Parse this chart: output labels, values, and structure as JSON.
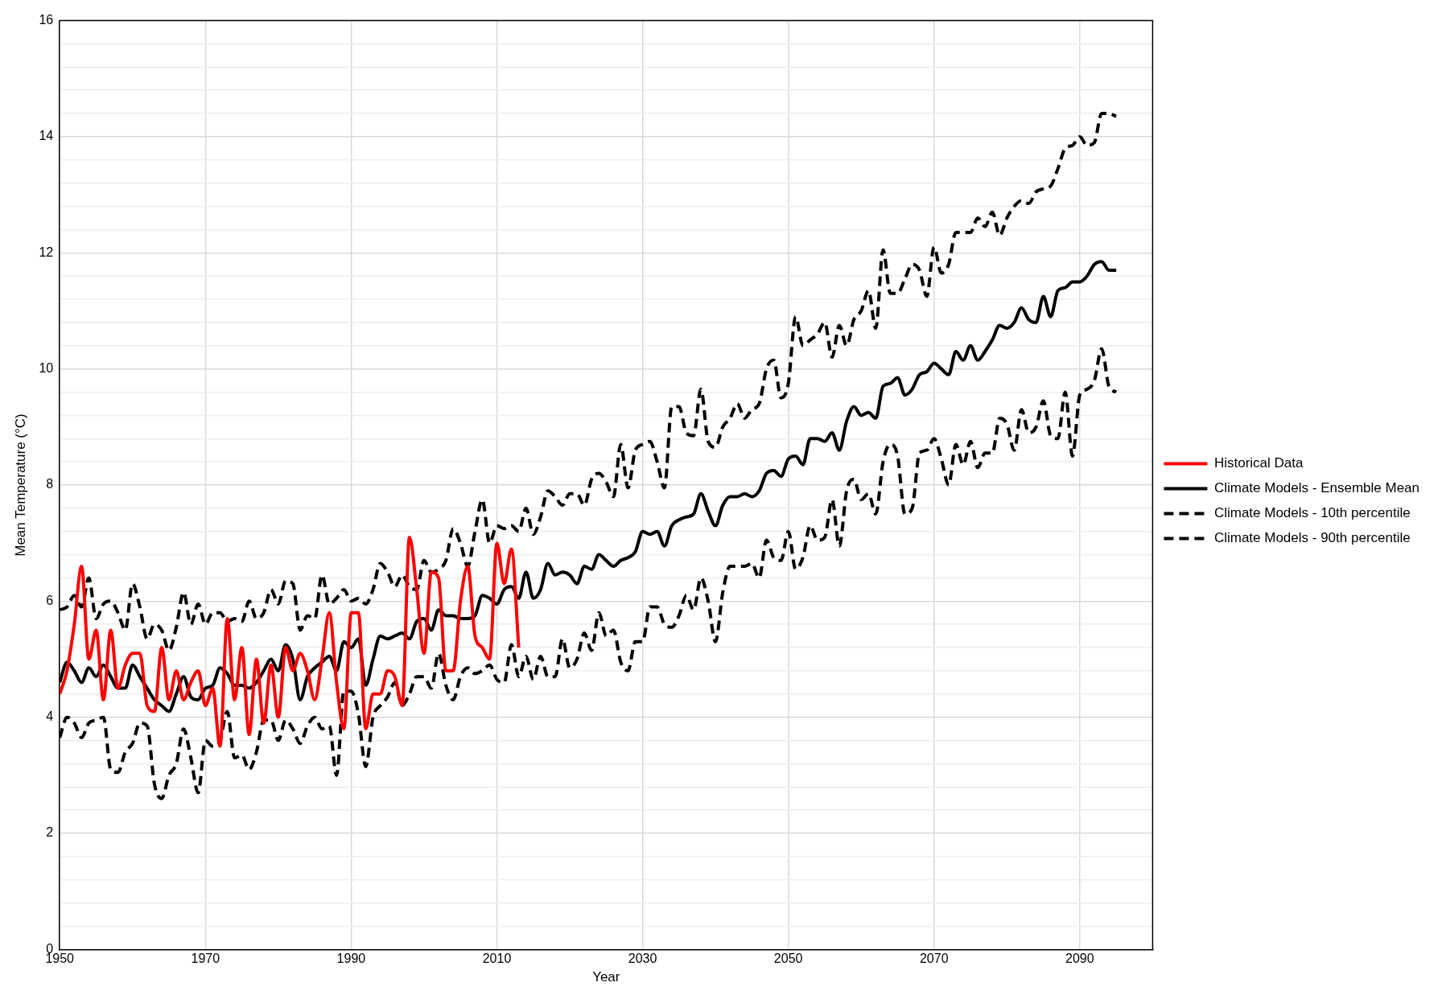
{
  "chart_data": {
    "type": "line",
    "xlabel": "Year",
    "ylabel": "Mean Temperature (°C)",
    "x": [
      1950,
      1951,
      1952,
      1953,
      1954,
      1955,
      1956,
      1957,
      1958,
      1959,
      1960,
      1961,
      1962,
      1963,
      1964,
      1965,
      1966,
      1967,
      1968,
      1969,
      1970,
      1971,
      1972,
      1973,
      1974,
      1975,
      1976,
      1977,
      1978,
      1979,
      1980,
      1981,
      1982,
      1983,
      1984,
      1985,
      1986,
      1987,
      1988,
      1989,
      1990,
      1991,
      1992,
      1993,
      1994,
      1995,
      1996,
      1997,
      1998,
      1999,
      2000,
      2001,
      2002,
      2003,
      2004,
      2005,
      2006,
      2007,
      2008,
      2009,
      2010,
      2011,
      2012,
      2013,
      2014,
      2015,
      2016,
      2017,
      2018,
      2019,
      2020,
      2021,
      2022,
      2023,
      2024,
      2025,
      2026,
      2027,
      2028,
      2029,
      2030,
      2031,
      2032,
      2033,
      2034,
      2035,
      2036,
      2037,
      2038,
      2039,
      2040,
      2041,
      2042,
      2043,
      2044,
      2045,
      2046,
      2047,
      2048,
      2049,
      2050,
      2051,
      2052,
      2053,
      2054,
      2055,
      2056,
      2057,
      2058,
      2059,
      2060,
      2061,
      2062,
      2063,
      2064,
      2065,
      2066,
      2067,
      2068,
      2069,
      2070,
      2071,
      2072,
      2073,
      2074,
      2075,
      2076,
      2077,
      2078,
      2079,
      2080,
      2081,
      2082,
      2083,
      2084,
      2085,
      2086,
      2087,
      2088,
      2089,
      2090,
      2091,
      2092,
      2093,
      2094,
      2095
    ],
    "series": [
      {
        "name": "Historical Data",
        "color": "#ff0000",
        "line_style": "solid",
        "x": [
          1950,
          1951,
          1952,
          1953,
          1954,
          1955,
          1956,
          1957,
          1958,
          1959,
          1960,
          1961,
          1962,
          1963,
          1964,
          1965,
          1966,
          1967,
          1968,
          1969,
          1970,
          1971,
          1972,
          1973,
          1974,
          1975,
          1976,
          1977,
          1978,
          1979,
          1980,
          1981,
          1982,
          1983,
          1984,
          1985,
          1986,
          1987,
          1988,
          1989,
          1990,
          1991,
          1992,
          1993,
          1994,
          1995,
          1996,
          1997,
          1998,
          1999,
          2000,
          2001,
          2002,
          2003,
          2004,
          2005,
          2006,
          2007,
          2008,
          2009,
          2010,
          2011,
          2012,
          2013
        ],
        "values": [
          4.4,
          4.8,
          5.6,
          6.6,
          5.0,
          5.5,
          4.3,
          5.5,
          4.5,
          4.9,
          5.1,
          5.1,
          4.2,
          4.1,
          5.2,
          4.3,
          4.8,
          4.3,
          4.6,
          4.8,
          4.2,
          4.5,
          3.5,
          5.7,
          4.3,
          5.2,
          3.7,
          5.0,
          3.9,
          4.9,
          4.0,
          5.2,
          4.8,
          5.1,
          4.8,
          4.3,
          5.0,
          5.8,
          4.6,
          3.8,
          5.8,
          5.8,
          3.8,
          4.4,
          4.4,
          4.8,
          4.7,
          4.2,
          7.1,
          6.2,
          5.1,
          6.5,
          6.4,
          4.8,
          4.8,
          6.0,
          6.6,
          5.4,
          5.2,
          5.0,
          7.0,
          6.3,
          6.9,
          5.2
        ]
      },
      {
        "name": "Climate Models - Ensemble Mean",
        "color": "#000000",
        "line_style": "solid",
        "values": [
          4.6,
          4.95,
          4.8,
          4.6,
          4.85,
          4.7,
          4.9,
          4.7,
          4.5,
          4.5,
          4.9,
          4.7,
          4.5,
          4.3,
          4.2,
          4.1,
          4.4,
          4.7,
          4.35,
          4.3,
          4.5,
          4.55,
          4.85,
          4.75,
          4.55,
          4.55,
          4.5,
          4.6,
          4.8,
          5.0,
          4.8,
          5.25,
          5.0,
          4.3,
          4.7,
          4.85,
          4.95,
          5.05,
          4.8,
          5.3,
          5.2,
          5.35,
          4.55,
          5.0,
          5.4,
          5.35,
          5.4,
          5.45,
          5.35,
          5.65,
          5.7,
          5.5,
          5.85,
          5.75,
          5.75,
          5.7,
          5.7,
          5.75,
          6.1,
          6.05,
          5.95,
          6.2,
          6.25,
          6.05,
          6.5,
          6.05,
          6.2,
          6.65,
          6.45,
          6.5,
          6.45,
          6.3,
          6.6,
          6.55,
          6.8,
          6.7,
          6.6,
          6.7,
          6.75,
          6.85,
          7.2,
          7.15,
          7.2,
          6.95,
          7.3,
          7.4,
          7.45,
          7.5,
          7.85,
          7.55,
          7.3,
          7.65,
          7.8,
          7.8,
          7.85,
          7.8,
          7.9,
          8.2,
          8.25,
          8.15,
          8.45,
          8.5,
          8.35,
          8.8,
          8.8,
          8.75,
          8.9,
          8.6,
          9.1,
          9.35,
          9.2,
          9.25,
          9.15,
          9.7,
          9.75,
          9.85,
          9.55,
          9.65,
          9.9,
          9.95,
          10.1,
          10.0,
          9.9,
          10.3,
          10.15,
          10.4,
          10.15,
          10.3,
          10.5,
          10.75,
          10.7,
          10.8,
          11.05,
          10.85,
          10.8,
          11.25,
          10.9,
          11.35,
          11.4,
          11.5,
          11.5,
          11.6,
          11.8,
          11.85,
          11.7,
          11.7
        ]
      },
      {
        "name": "Climate Models - 10th percentile",
        "color": "#000000",
        "line_style": "dashed",
        "values": [
          3.65,
          4.0,
          3.9,
          3.65,
          3.9,
          3.95,
          4.0,
          3.1,
          3.05,
          3.4,
          3.55,
          3.9,
          3.85,
          2.85,
          2.6,
          3.0,
          3.2,
          3.8,
          3.3,
          2.7,
          3.6,
          3.5,
          3.6,
          4.1,
          3.3,
          3.35,
          3.1,
          3.4,
          3.95,
          3.95,
          3.6,
          3.95,
          3.8,
          3.55,
          3.85,
          4.0,
          3.8,
          3.85,
          3.0,
          4.45,
          4.45,
          4.05,
          3.15,
          4.0,
          4.2,
          4.35,
          4.6,
          4.2,
          4.4,
          4.7,
          4.7,
          4.5,
          5.1,
          4.55,
          4.3,
          4.7,
          4.85,
          4.75,
          4.8,
          4.9,
          4.65,
          4.6,
          5.25,
          4.7,
          5.05,
          4.65,
          5.05,
          4.7,
          4.7,
          5.35,
          4.85,
          5.0,
          5.45,
          5.15,
          5.8,
          5.4,
          5.5,
          4.95,
          4.8,
          5.3,
          5.3,
          5.9,
          5.9,
          5.6,
          5.55,
          5.75,
          6.1,
          5.85,
          6.4,
          6.0,
          5.3,
          6.15,
          6.6,
          6.6,
          6.6,
          6.65,
          6.4,
          7.05,
          6.75,
          6.7,
          7.2,
          6.55,
          6.75,
          7.3,
          7.05,
          7.1,
          7.75,
          6.95,
          7.9,
          8.1,
          7.75,
          7.85,
          7.5,
          8.4,
          8.7,
          8.5,
          7.5,
          7.6,
          8.55,
          8.6,
          8.8,
          8.45,
          8.0,
          8.7,
          8.35,
          8.75,
          8.3,
          8.55,
          8.55,
          9.15,
          9.05,
          8.6,
          9.3,
          8.9,
          9.0,
          9.45,
          8.85,
          8.8,
          9.6,
          8.5,
          9.55,
          9.65,
          9.8,
          10.35,
          9.7,
          9.6
        ]
      },
      {
        "name": "Climate Models - 90th percentile",
        "color": "#000000",
        "line_style": "dashed",
        "values": [
          5.85,
          5.9,
          6.1,
          5.9,
          6.4,
          5.7,
          5.95,
          6.0,
          5.8,
          5.5,
          6.3,
          5.9,
          5.35,
          5.6,
          5.5,
          5.15,
          5.55,
          6.15,
          5.6,
          5.95,
          5.6,
          5.8,
          5.8,
          5.65,
          5.7,
          5.65,
          6.0,
          5.7,
          5.8,
          6.2,
          5.95,
          6.35,
          6.3,
          5.5,
          5.75,
          5.7,
          6.45,
          5.95,
          6.05,
          6.2,
          6.0,
          6.05,
          5.95,
          6.2,
          6.65,
          6.5,
          6.25,
          6.45,
          6.25,
          6.2,
          6.7,
          6.5,
          6.55,
          6.7,
          7.25,
          7.0,
          6.6,
          7.2,
          7.75,
          7.0,
          7.3,
          7.25,
          7.3,
          7.2,
          7.6,
          7.15,
          7.45,
          7.9,
          7.8,
          7.65,
          7.85,
          7.85,
          7.65,
          8.1,
          8.2,
          8.05,
          7.8,
          8.7,
          7.95,
          8.6,
          8.7,
          8.75,
          8.4,
          7.95,
          9.35,
          9.35,
          8.9,
          8.85,
          9.65,
          8.75,
          8.65,
          9.0,
          9.15,
          9.4,
          9.15,
          9.3,
          9.4,
          10.0,
          10.15,
          9.5,
          9.75,
          10.9,
          10.4,
          10.5,
          10.6,
          10.8,
          10.2,
          10.75,
          10.4,
          10.85,
          11.0,
          11.35,
          10.7,
          12.05,
          11.3,
          11.3,
          11.55,
          11.8,
          11.7,
          11.25,
          12.1,
          11.65,
          11.8,
          12.35,
          12.35,
          12.35,
          12.6,
          12.45,
          12.7,
          12.3,
          12.6,
          12.8,
          12.9,
          12.85,
          13.05,
          13.1,
          13.15,
          13.45,
          13.8,
          13.85,
          14.0,
          13.85,
          13.9,
          14.4,
          14.4,
          14.35
        ]
      }
    ],
    "xlim": [
      1950,
      2100
    ],
    "xticks": [
      1950,
      1970,
      1990,
      2010,
      2030,
      2050,
      2070,
      2090
    ],
    "ylim": [
      0,
      16
    ],
    "yticks": [
      0,
      {
        "value": 0.4,
        "label": null
      },
      {
        "value": 0.8,
        "label": null
      },
      {
        "value": 1.2,
        "label": null
      },
      {
        "value": 1.6,
        "label": null
      },
      2,
      {
        "value": 2.4,
        "label": null
      },
      {
        "value": 2.8,
        "label": null
      },
      {
        "value": 3.2,
        "label": null
      },
      {
        "value": 3.6,
        "label": null
      },
      4,
      {
        "value": 4.4,
        "label": null
      },
      {
        "value": 4.8,
        "label": null
      },
      {
        "value": 5.2,
        "label": null
      },
      {
        "value": 5.6,
        "label": null
      },
      6,
      {
        "value": 6.4,
        "label": null
      },
      {
        "value": 6.8,
        "label": null
      },
      {
        "value": 7.2,
        "label": null
      },
      {
        "value": 7.6,
        "label": null
      },
      8,
      {
        "value": 8.4,
        "label": null
      },
      {
        "value": 8.8,
        "label": null
      },
      {
        "value": 9.2,
        "label": null
      },
      {
        "value": 9.6,
        "label": null
      },
      10,
      {
        "value": 10.4,
        "label": null
      },
      {
        "value": 10.8,
        "label": null
      },
      {
        "value": 11.2,
        "label": null
      },
      {
        "value": 11.6,
        "label": null
      },
      12,
      {
        "value": 12.4,
        "label": null
      },
      {
        "value": 12.8,
        "label": null
      },
      {
        "value": 13.2,
        "label": null
      },
      {
        "value": 13.6,
        "label": null
      },
      14,
      {
        "value": 14.4,
        "label": null
      },
      {
        "value": 14.8,
        "label": null
      },
      {
        "value": 15.2,
        "label": null
      },
      {
        "value": 15.6,
        "label": null
      },
      16
    ],
    "grid": true,
    "legend": "right",
    "marker": "none"
  }
}
